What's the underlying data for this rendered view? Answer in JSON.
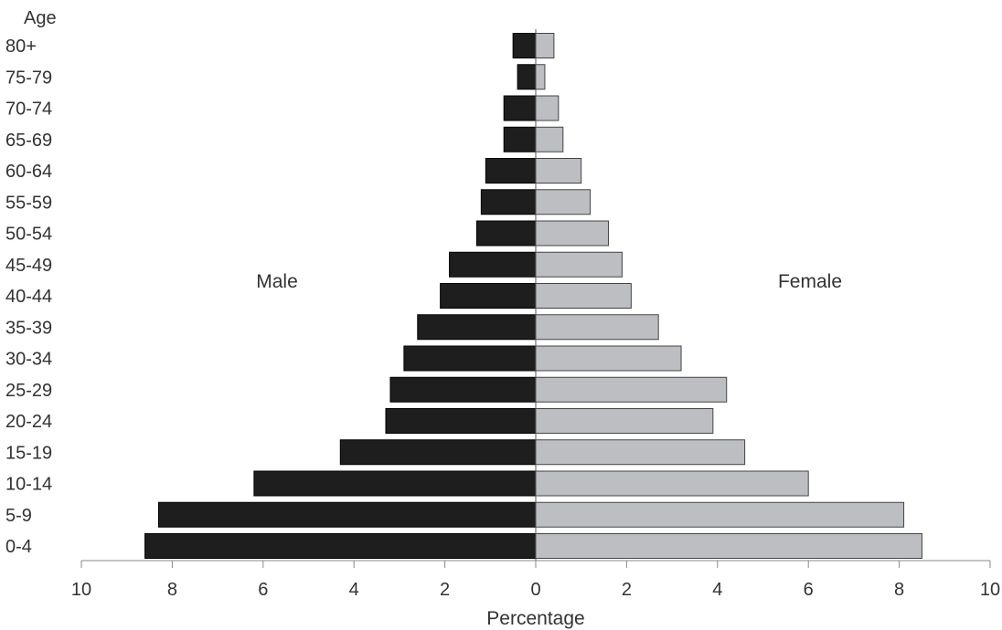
{
  "chart_data": {
    "type": "bar",
    "orientation": "horizontal",
    "layout": "population-pyramid",
    "y_axis_title": "Age",
    "xlabel": "Percentage",
    "xlim": [
      -10,
      10
    ],
    "x_ticks": [
      -10,
      -8,
      -6,
      -4,
      -2,
      0,
      2,
      4,
      6,
      8,
      10
    ],
    "x_tick_labels": [
      "10",
      "8",
      "6",
      "4",
      "2",
      "0",
      "2",
      "4",
      "6",
      "8",
      "10"
    ],
    "categories": [
      "0-4",
      "5-9",
      "10-14",
      "15-19",
      "20-24",
      "25-29",
      "30-34",
      "35-39",
      "40-44",
      "45-49",
      "50-54",
      "55-59",
      "60-64",
      "65-69",
      "70-74",
      "75-79",
      "80+"
    ],
    "series": [
      {
        "name": "Male",
        "side": "left",
        "color": "#1e1e1e",
        "values": [
          8.6,
          8.3,
          6.2,
          4.3,
          3.3,
          3.2,
          2.9,
          2.6,
          2.1,
          1.9,
          1.3,
          1.2,
          1.1,
          0.7,
          0.7,
          0.4,
          0.5
        ]
      },
      {
        "name": "Female",
        "side": "right",
        "color": "#bcbec2",
        "values": [
          8.5,
          8.1,
          6.0,
          4.6,
          3.9,
          4.2,
          3.2,
          2.7,
          2.1,
          1.9,
          1.6,
          1.2,
          1.0,
          0.6,
          0.5,
          0.2,
          0.4
        ]
      }
    ],
    "grid": false,
    "legend": "inline-labels"
  }
}
